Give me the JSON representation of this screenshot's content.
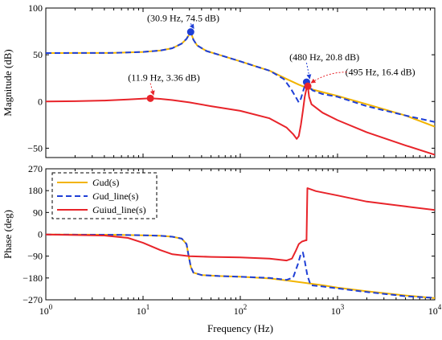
{
  "chart_data": [
    {
      "type": "line",
      "panel": "magnitude",
      "ylabel": "Magnitude (dB)",
      "ylim": [
        -60,
        100
      ],
      "yticks": [
        -50,
        0,
        50,
        100
      ],
      "ytick_labels": [
        "−50",
        "0",
        "50",
        "100"
      ],
      "xscale": "log",
      "xlim": [
        1,
        10000
      ],
      "grid": false,
      "series": [
        {
          "key": "gud",
          "color": "#f2b400",
          "dash": "solid",
          "points": [
            [
              1,
              51.8
            ],
            [
              5,
              52
            ],
            [
              10,
              53
            ],
            [
              15,
              54.5
            ],
            [
              20,
              57
            ],
            [
              25,
              62
            ],
            [
              28,
              67
            ],
            [
              30.9,
              74.5
            ],
            [
              33,
              66
            ],
            [
              36,
              60
            ],
            [
              45,
              54
            ],
            [
              60,
              50
            ],
            [
              100,
              43
            ],
            [
              150,
              37
            ],
            [
              200,
              33
            ],
            [
              300,
              24
            ],
            [
              400,
              18
            ],
            [
              500,
              14
            ],
            [
              700,
              10
            ],
            [
              1000,
              6
            ],
            [
              2000,
              -3
            ],
            [
              5000,
              -15
            ],
            [
              10000,
              -27
            ]
          ]
        },
        {
          "key": "gud_line",
          "color": "#1f3fd6",
          "dash": "dashed",
          "points": [
            [
              1,
              51.8
            ],
            [
              5,
              52
            ],
            [
              10,
              53
            ],
            [
              15,
              54.5
            ],
            [
              20,
              57
            ],
            [
              25,
              62
            ],
            [
              28,
              67
            ],
            [
              30.9,
              74.5
            ],
            [
              33,
              66
            ],
            [
              36,
              60
            ],
            [
              45,
              54
            ],
            [
              60,
              50
            ],
            [
              100,
              43
            ],
            [
              150,
              37
            ],
            [
              200,
              33
            ],
            [
              280,
              24
            ],
            [
              330,
              14
            ],
            [
              370,
              5
            ],
            [
              400,
              -1
            ],
            [
              420,
              3
            ],
            [
              445,
              12
            ],
            [
              465,
              18
            ],
            [
              480,
              20.8
            ],
            [
              500,
              18
            ],
            [
              550,
              12
            ],
            [
              700,
              8
            ],
            [
              1000,
              5
            ],
            [
              2000,
              -5
            ],
            [
              5000,
              -15
            ],
            [
              10000,
              -22
            ]
          ]
        },
        {
          "key": "guiud_line",
          "color": "#e8242a",
          "dash": "solid",
          "points": [
            [
              1,
              0
            ],
            [
              2,
              0.3
            ],
            [
              4,
              1
            ],
            [
              7,
              2.2
            ],
            [
              11.9,
              3.36
            ],
            [
              15,
              2.8
            ],
            [
              20,
              1.5
            ],
            [
              30,
              -1
            ],
            [
              50,
              -5
            ],
            [
              100,
              -10
            ],
            [
              200,
              -18
            ],
            [
              300,
              -28
            ],
            [
              350,
              -35
            ],
            [
              380,
              -40
            ],
            [
              400,
              -37
            ],
            [
              420,
              -25
            ],
            [
              440,
              -10
            ],
            [
              460,
              5
            ],
            [
              480,
              14
            ],
            [
              495,
              16.4
            ],
            [
              510,
              5
            ],
            [
              540,
              -3
            ],
            [
              700,
              -12
            ],
            [
              1000,
              -20
            ],
            [
              2000,
              -33
            ],
            [
              5000,
              -47
            ],
            [
              10000,
              -57
            ]
          ]
        }
      ],
      "markers": [
        {
          "x": 30.9,
          "y": 74.5,
          "color": "#1f3fd6"
        },
        {
          "x": 480,
          "y": 20.8,
          "color": "#1f3fd6"
        },
        {
          "x": 11.9,
          "y": 3.36,
          "color": "#e8242a"
        },
        {
          "x": 495,
          "y": 16.4,
          "color": "#e8242a"
        }
      ],
      "annotations": [
        {
          "text": "(30.9 Hz, 74.5 dB)",
          "target": [
            30.9,
            74.5
          ],
          "label_at": [
            11,
            86
          ],
          "color": "#1f3fd6"
        },
        {
          "text": "(480 Hz, 20.8 dB)",
          "target": [
            480,
            20.8
          ],
          "label_at": [
            320,
            44
          ],
          "color": "#1f3fd6"
        },
        {
          "text": "(495 Hz, 16.4 dB)",
          "target": [
            495,
            16.4
          ],
          "label_at": [
            1200,
            28
          ],
          "color": "#e8242a"
        },
        {
          "text": "(11.9 Hz, 3.36 dB)",
          "target": [
            11.9,
            3.36
          ],
          "label_at": [
            7,
            22
          ],
          "color": "#e8242a"
        }
      ]
    },
    {
      "type": "line",
      "panel": "phase",
      "xlabel": "Frequency  (Hz)",
      "ylabel": "Phase (deg)",
      "ylim": [
        -270,
        270
      ],
      "yticks": [
        -270,
        -180,
        -90,
        0,
        90,
        180,
        270
      ],
      "ytick_labels": [
        "−270",
        "−180",
        "−90",
        "0",
        "90",
        "180",
        "270"
      ],
      "xscale": "log",
      "xlim": [
        1,
        10000
      ],
      "xticks": [
        1,
        10,
        100,
        1000,
        10000
      ],
      "xtick_labels": [
        {
          "base": "10",
          "exp": "0"
        },
        {
          "base": "10",
          "exp": "1"
        },
        {
          "base": "10",
          "exp": "2"
        },
        {
          "base": "10",
          "exp": "3"
        },
        {
          "base": "10",
          "exp": "4"
        }
      ],
      "grid": false,
      "legend": {
        "placement": "top-left",
        "entries": [
          {
            "series": "gud",
            "italic": "G",
            "rest": "ud(s)"
          },
          {
            "series": "gud_line",
            "italic": "G",
            "rest": "ud_line(s)"
          },
          {
            "series": "guiud_line",
            "italic": "G",
            "rest": "uiud_line(s)"
          }
        ]
      },
      "series": [
        {
          "key": "gud",
          "color": "#f2b400",
          "dash": "solid",
          "points": [
            [
              1,
              -1
            ],
            [
              5,
              -2
            ],
            [
              10,
              -4
            ],
            [
              15,
              -6
            ],
            [
              20,
              -10
            ],
            [
              25,
              -18
            ],
            [
              28,
              -40
            ],
            [
              29.5,
              -90
            ],
            [
              31,
              -135
            ],
            [
              33,
              -158
            ],
            [
              40,
              -168
            ],
            [
              60,
              -172
            ],
            [
              100,
              -175
            ],
            [
              200,
              -182
            ],
            [
              300,
              -190
            ],
            [
              500,
              -202
            ],
            [
              700,
              -210
            ],
            [
              1000,
              -220
            ],
            [
              2000,
              -235
            ],
            [
              5000,
              -252
            ],
            [
              10000,
              -263
            ]
          ]
        },
        {
          "key": "gud_line",
          "color": "#1f3fd6",
          "dash": "dashed",
          "points": [
            [
              1,
              -1
            ],
            [
              5,
              -2
            ],
            [
              10,
              -4
            ],
            [
              15,
              -6
            ],
            [
              20,
              -10
            ],
            [
              25,
              -18
            ],
            [
              28,
              -40
            ],
            [
              29.5,
              -90
            ],
            [
              31,
              -135
            ],
            [
              33,
              -158
            ],
            [
              40,
              -168
            ],
            [
              60,
              -172
            ],
            [
              100,
              -175
            ],
            [
              200,
              -180
            ],
            [
              300,
              -188
            ],
            [
              350,
              -178
            ],
            [
              390,
              -125
            ],
            [
              420,
              -80
            ],
            [
              440,
              -75
            ],
            [
              460,
              -110
            ],
            [
              490,
              -170
            ],
            [
              530,
              -210
            ],
            [
              700,
              -215
            ],
            [
              1000,
              -223
            ],
            [
              2000,
              -238
            ],
            [
              5000,
              -255
            ],
            [
              10000,
              -262
            ]
          ]
        },
        {
          "key": "guiud_line",
          "color": "#e8242a",
          "dash": "solid",
          "points": [
            [
              1,
              -1
            ],
            [
              4,
              -5
            ],
            [
              7,
              -15
            ],
            [
              10,
              -35
            ],
            [
              15,
              -65
            ],
            [
              20,
              -82
            ],
            [
              30,
              -90
            ],
            [
              50,
              -93
            ],
            [
              100,
              -95
            ],
            [
              200,
              -100
            ],
            [
              300,
              -108
            ],
            [
              340,
              -100
            ],
            [
              370,
              -70
            ],
            [
              400,
              -40
            ],
            [
              430,
              -30
            ],
            [
              470,
              -25
            ],
            [
              480,
              -25
            ],
            [
              490,
              190
            ],
            [
              600,
              178
            ],
            [
              1000,
              160
            ],
            [
              2000,
              135
            ],
            [
              5000,
              115
            ],
            [
              10000,
              100
            ]
          ]
        }
      ]
    }
  ]
}
